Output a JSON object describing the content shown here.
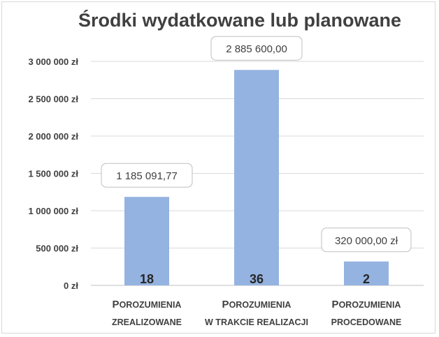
{
  "chart_data": {
    "type": "bar",
    "title": "Środki wydatkowane lub planowane",
    "categories": [
      [
        "Porozumienia",
        "zrealizowane"
      ],
      [
        "Porozumienia",
        "w trakcie realizacji"
      ],
      [
        "Porozumienia",
        "procedowane"
      ]
    ],
    "values": [
      1185091.77,
      2885600.0,
      320000.0
    ],
    "data_labels": [
      "1 185 091,77",
      "2 885 600,00",
      "320 000,00 zł"
    ],
    "counts": [
      "18",
      "36",
      "2"
    ],
    "ylim": [
      0,
      3000000
    ],
    "yticks": [
      0,
      500000,
      1000000,
      1500000,
      2000000,
      2500000,
      3000000
    ],
    "ytick_labels": [
      "0 zł",
      "500 000 zł",
      "1 000 000 zł",
      "1 500 000 zł",
      "2 000 000 zł",
      "2 500 000 zł",
      "3 000 000 zł"
    ],
    "grid": true,
    "bar_color": "#95b3e0",
    "grid_color": "#d9d9d9"
  }
}
